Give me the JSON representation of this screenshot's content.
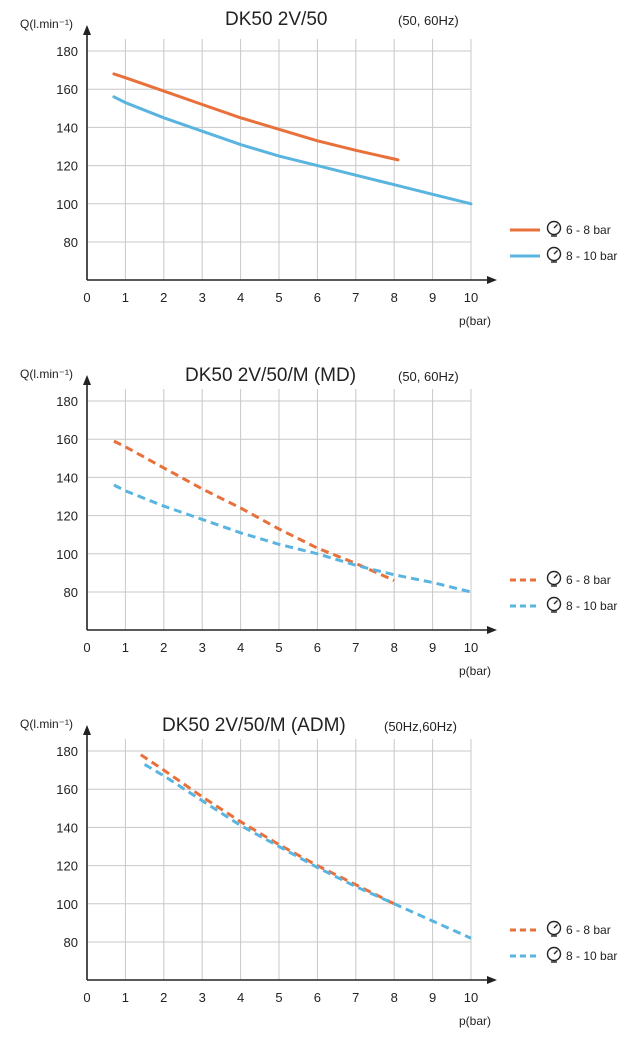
{
  "chart_data": [
    {
      "type": "line",
      "title": "DK50 2V/50",
      "subtitle": "(50, 60Hz)",
      "ylabel": "Q(l.min⁻¹)",
      "xlabel": "p(bar)",
      "xlim": [
        0,
        10
      ],
      "ylim": [
        60,
        180
      ],
      "x_ticks": [
        "0",
        "1",
        "2",
        "3",
        "4",
        "5",
        "6",
        "7",
        "8",
        "9",
        "10"
      ],
      "y_ticks": [
        "80",
        "100",
        "120",
        "140",
        "160",
        "180"
      ],
      "grid": true,
      "legend_position": "right",
      "series": [
        {
          "name": "6 - 8 bar",
          "color": "#e8703a",
          "dashed": false,
          "x": [
            0.7,
            1,
            2,
            3,
            4,
            5,
            6,
            7,
            8.1
          ],
          "y": [
            168,
            166,
            159,
            152,
            145,
            139,
            133,
            128,
            123
          ]
        },
        {
          "name": "8 - 10 bar",
          "color": "#5ab4e0",
          "dashed": false,
          "x": [
            0.7,
            1,
            2,
            3,
            4,
            5,
            6,
            7,
            8,
            9,
            10
          ],
          "y": [
            156,
            153,
            145,
            138,
            131,
            125,
            120,
            115,
            110,
            105,
            100
          ]
        }
      ]
    },
    {
      "type": "line",
      "title": "DK50 2V/50/M (MD)",
      "subtitle": "(50, 60Hz)",
      "ylabel": "Q(l.min⁻¹)",
      "xlabel": "p(bar)",
      "xlim": [
        0,
        10
      ],
      "ylim": [
        60,
        180
      ],
      "x_ticks": [
        "0",
        "1",
        "2",
        "3",
        "4",
        "5",
        "6",
        "7",
        "8",
        "9",
        "10"
      ],
      "y_ticks": [
        "80",
        "100",
        "120",
        "140",
        "160",
        "180"
      ],
      "grid": true,
      "legend_position": "right",
      "series": [
        {
          "name": "6 - 8 bar",
          "color": "#e8703a",
          "dashed": true,
          "x": [
            0.7,
            1,
            2,
            3,
            4,
            5,
            6,
            7,
            8
          ],
          "y": [
            159,
            156,
            145,
            134,
            124,
            113,
            103,
            95,
            86
          ]
        },
        {
          "name": "8 - 10 bar",
          "color": "#5ab4e0",
          "dashed": true,
          "x": [
            0.7,
            1,
            2,
            3,
            4,
            5,
            6,
            7,
            8,
            9,
            10
          ],
          "y": [
            136,
            133,
            125,
            118,
            111,
            105,
            100,
            94,
            89,
            85,
            80
          ]
        }
      ]
    },
    {
      "type": "line",
      "title": "DK50 2V/50/M (ADM)",
      "subtitle": "(50Hz,60Hz)",
      "ylabel": "Q(l.min⁻¹)",
      "xlabel": "p(bar)",
      "xlim": [
        0,
        10
      ],
      "ylim": [
        60,
        180
      ],
      "x_ticks": [
        "0",
        "1",
        "2",
        "3",
        "4",
        "5",
        "6",
        "7",
        "8",
        "9",
        "10"
      ],
      "y_ticks": [
        "80",
        "100",
        "120",
        "140",
        "160",
        "180"
      ],
      "grid": true,
      "legend_position": "right",
      "series": [
        {
          "name": "6 - 8 bar",
          "color": "#e8703a",
          "dashed": true,
          "x": [
            1.4,
            2,
            3,
            4,
            5,
            6,
            7,
            8
          ],
          "y": [
            178,
            170,
            156,
            143,
            131,
            120,
            110,
            100
          ]
        },
        {
          "name": "8 - 10 bar",
          "color": "#5ab4e0",
          "dashed": true,
          "x": [
            1.5,
            2,
            3,
            4,
            5,
            6,
            7,
            8,
            9,
            10
          ],
          "y": [
            173,
            167,
            154,
            141,
            130,
            119,
            109,
            100,
            91,
            82
          ]
        }
      ]
    }
  ]
}
